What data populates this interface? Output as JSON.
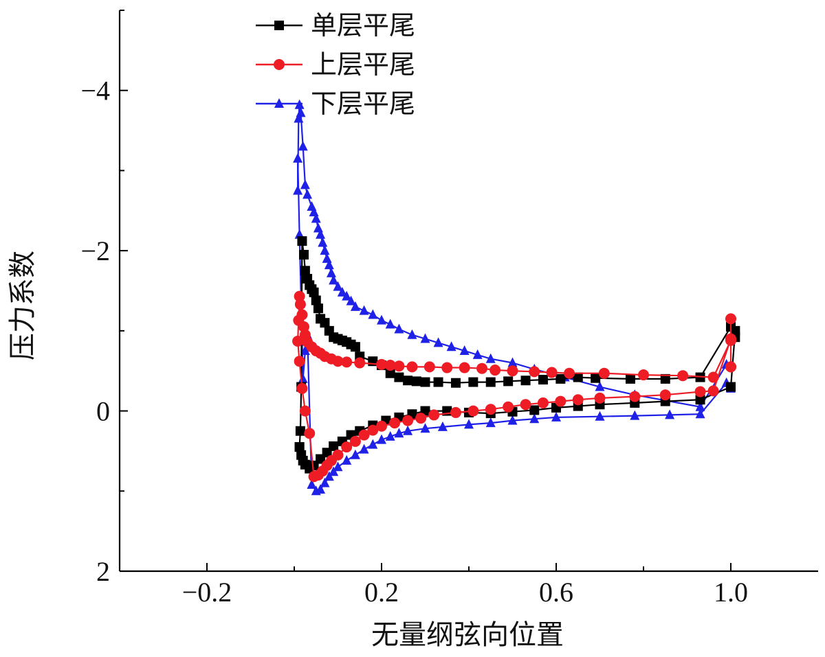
{
  "chart_data": {
    "type": "line",
    "xlabel": "无量纲弦向位置",
    "ylabel": "压力系数",
    "xlim": [
      -0.4,
      1.2
    ],
    "ylim": [
      -5,
      2
    ],
    "y_inverted": true,
    "x_ticks": [
      -0.2,
      0.2,
      0.6,
      1.0
    ],
    "x_tick_labels": [
      "−0.2",
      "0.2",
      "0.6",
      "1.0"
    ],
    "y_ticks": [
      -4,
      -2,
      0,
      2
    ],
    "y_tick_labels": [
      "−4",
      "−2",
      "0",
      "2"
    ],
    "legend_position": "top-center",
    "grid": false,
    "series": [
      {
        "name": "单层平尾",
        "color": "#000000",
        "marker": "square",
        "x": [
          1.01,
          1.0,
          0.93,
          0.85,
          0.77,
          0.69,
          0.65,
          0.61,
          0.57,
          0.53,
          0.49,
          0.45,
          0.41,
          0.37,
          0.33,
          0.3,
          0.28,
          0.26,
          0.24,
          0.22,
          0.2,
          0.18,
          0.15,
          0.14,
          0.13,
          0.12,
          0.11,
          0.1,
          0.09,
          0.08,
          0.07,
          0.06,
          0.055,
          0.05,
          0.045,
          0.04,
          0.035,
          0.03,
          0.025,
          0.022,
          0.018,
          0.016,
          0.014,
          0.012,
          0.012,
          0.016,
          0.02,
          0.025,
          0.035,
          0.045,
          0.06,
          0.075,
          0.09,
          0.11,
          0.13,
          0.15,
          0.18,
          0.21,
          0.24,
          0.27,
          0.3,
          0.35,
          0.4,
          0.45,
          0.5,
          0.55,
          0.6,
          0.65,
          0.7,
          0.78,
          0.85,
          0.93,
          1.0,
          1.01
        ],
        "y": [
          -0.92,
          -1.05,
          -0.42,
          -0.4,
          -0.4,
          -0.41,
          -0.42,
          -0.4,
          -0.39,
          -0.38,
          -0.37,
          -0.36,
          -0.36,
          -0.35,
          -0.36,
          -0.36,
          -0.37,
          -0.38,
          -0.42,
          -0.47,
          -0.57,
          -0.62,
          -0.68,
          -0.8,
          -0.83,
          -0.86,
          -0.88,
          -0.9,
          -0.92,
          -1.0,
          -1.1,
          -1.15,
          -1.28,
          -1.38,
          -1.48,
          -1.52,
          -1.57,
          -1.65,
          -1.75,
          -1.95,
          -2.12,
          -0.3,
          0.25,
          0.45,
          0.45,
          0.55,
          0.62,
          0.67,
          0.72,
          0.68,
          0.6,
          0.52,
          0.44,
          0.38,
          0.3,
          0.25,
          0.18,
          0.12,
          0.08,
          0.04,
          0.0,
          0.0,
          0.02,
          0.03,
          0.01,
          -0.01,
          -0.04,
          -0.06,
          -0.08,
          -0.1,
          -0.12,
          -0.14,
          -0.3,
          -1.0
        ]
      },
      {
        "name": "上层平尾",
        "color": "#ee1c25",
        "marker": "circle",
        "x": [
          1.0,
          1.0,
          0.96,
          0.89,
          0.8,
          0.71,
          0.63,
          0.59,
          0.55,
          0.5,
          0.46,
          0.43,
          0.39,
          0.35,
          0.31,
          0.27,
          0.24,
          0.22,
          0.2,
          0.15,
          0.12,
          0.1,
          0.085,
          0.07,
          0.06,
          0.05,
          0.04,
          0.03,
          0.025,
          0.022,
          0.018,
          0.014,
          0.012,
          0.01,
          0.008,
          0.012,
          0.018,
          0.025,
          0.035,
          0.045,
          0.055,
          0.065,
          0.075,
          0.085,
          0.1,
          0.12,
          0.14,
          0.16,
          0.18,
          0.2,
          0.23,
          0.26,
          0.29,
          0.32,
          0.37,
          0.41,
          0.45,
          0.49,
          0.53,
          0.57,
          0.61,
          0.65,
          0.7,
          0.78,
          0.85,
          0.93,
          0.96,
          1.0,
          1.0,
          1.0
        ],
        "y": [
          -0.55,
          -0.88,
          -0.42,
          -0.44,
          -0.45,
          -0.47,
          -0.47,
          -0.48,
          -0.49,
          -0.5,
          -0.51,
          -0.53,
          -0.54,
          -0.54,
          -0.55,
          -0.55,
          -0.56,
          -0.57,
          -0.58,
          -0.6,
          -0.61,
          -0.62,
          -0.65,
          -0.68,
          -0.72,
          -0.75,
          -0.8,
          -0.86,
          -0.95,
          -1.05,
          -1.2,
          -1.33,
          -1.43,
          -1.13,
          -0.87,
          -0.62,
          -0.28,
          0.0,
          0.28,
          0.82,
          0.8,
          0.75,
          0.68,
          0.62,
          0.55,
          0.45,
          0.38,
          0.3,
          0.24,
          0.19,
          0.15,
          0.12,
          0.09,
          0.05,
          0.02,
          0.0,
          -0.02,
          -0.05,
          -0.08,
          -0.1,
          -0.12,
          -0.14,
          -0.16,
          -0.18,
          -0.2,
          -0.24,
          -0.25,
          -0.9,
          -1.15,
          -0.55
        ]
      },
      {
        "name": "下层平尾",
        "color": "#1f22e6",
        "marker": "triangle",
        "x": [
          0.99,
          0.93,
          0.78,
          0.7,
          0.62,
          0.55,
          0.5,
          0.45,
          0.42,
          0.39,
          0.36,
          0.33,
          0.3,
          0.27,
          0.24,
          0.22,
          0.2,
          0.18,
          0.16,
          0.14,
          0.13,
          0.12,
          0.11,
          0.1,
          0.09,
          0.085,
          0.08,
          0.075,
          0.07,
          0.065,
          0.06,
          0.055,
          0.05,
          0.045,
          0.04,
          0.03,
          0.025,
          0.02,
          0.015,
          0.012,
          0.01,
          0.008,
          0.008,
          0.012,
          0.02,
          0.025,
          0.03,
          0.04,
          0.05,
          0.06,
          0.07,
          0.08,
          0.09,
          0.1,
          0.12,
          0.14,
          0.16,
          0.18,
          0.2,
          0.22,
          0.24,
          0.26,
          0.3,
          0.34,
          0.4,
          0.45,
          0.5,
          0.55,
          0.6,
          0.7,
          0.78,
          0.86,
          0.93,
          0.99,
          1.0
        ],
        "y": [
          -0.58,
          -0.05,
          -0.2,
          -0.3,
          -0.42,
          -0.52,
          -0.6,
          -0.65,
          -0.7,
          -0.75,
          -0.8,
          -0.85,
          -0.9,
          -0.95,
          -1.02,
          -1.08,
          -1.13,
          -1.2,
          -1.25,
          -1.3,
          -1.37,
          -1.43,
          -1.48,
          -1.55,
          -1.63,
          -1.72,
          -1.82,
          -1.9,
          -2.0,
          -2.1,
          -2.2,
          -2.28,
          -2.4,
          -2.48,
          -2.55,
          -2.7,
          -2.82,
          -3.3,
          -3.72,
          -3.82,
          -3.65,
          -2.75,
          -3.15,
          -2.2,
          -0.4,
          -0.75,
          -0.95,
          0.92,
          1.0,
          0.98,
          0.9,
          0.82,
          0.76,
          0.7,
          0.62,
          0.55,
          0.48,
          0.42,
          0.36,
          0.32,
          0.28,
          0.25,
          0.22,
          0.2,
          0.17,
          0.15,
          0.12,
          0.1,
          0.08,
          0.07,
          0.06,
          0.05,
          0.04,
          -0.35,
          -0.28
        ]
      }
    ]
  }
}
